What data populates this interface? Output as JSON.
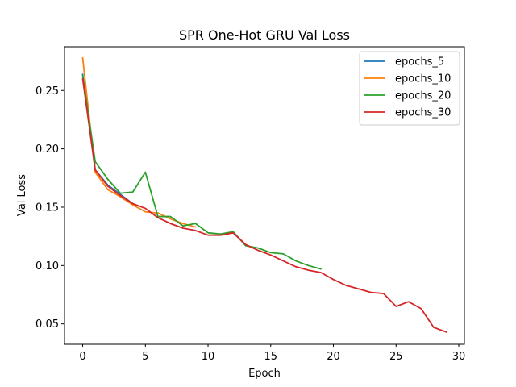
{
  "chart_data": {
    "type": "line",
    "title": "SPR One-Hot GRU Val Loss",
    "xlabel": "Epoch",
    "ylabel": "Val Loss",
    "xlim": [
      -1.45,
      30.45
    ],
    "ylim": [
      0.0325,
      0.2875
    ],
    "xticks": [
      0,
      5,
      10,
      15,
      20,
      25,
      30
    ],
    "yticks": [
      0.05,
      0.1,
      0.15,
      0.2,
      0.25
    ],
    "ytick_labels": [
      "0.05",
      "0.10",
      "0.15",
      "0.20",
      "0.25"
    ],
    "grid": false,
    "legend_position": "top-right",
    "series": [
      {
        "name": "epochs_5",
        "color": "#1f77b4",
        "x": [
          0,
          1,
          2,
          3,
          4
        ],
        "y": [
          0.264,
          0.182,
          0.169,
          0.161,
          0.153
        ]
      },
      {
        "name": "epochs_10",
        "color": "#ff7f0e",
        "x": [
          0,
          1,
          2,
          3,
          4,
          5,
          6,
          7,
          8,
          9
        ],
        "y": [
          0.278,
          0.18,
          0.165,
          0.159,
          0.152,
          0.146,
          0.145,
          0.14,
          0.136,
          0.133
        ]
      },
      {
        "name": "epochs_20",
        "color": "#2ca02c",
        "x": [
          0,
          1,
          2,
          3,
          4,
          5,
          6,
          7,
          8,
          9,
          10,
          11,
          12,
          13,
          14,
          15,
          16,
          17,
          18,
          19
        ],
        "y": [
          0.263,
          0.189,
          0.174,
          0.162,
          0.163,
          0.18,
          0.142,
          0.142,
          0.134,
          0.136,
          0.128,
          0.127,
          0.129,
          0.117,
          0.115,
          0.111,
          0.11,
          0.104,
          0.1,
          0.097
        ]
      },
      {
        "name": "epochs_30",
        "color": "#d62728",
        "x": [
          0,
          1,
          2,
          3,
          4,
          5,
          6,
          7,
          8,
          9,
          10,
          11,
          12,
          13,
          14,
          15,
          16,
          17,
          18,
          19,
          20,
          21,
          22,
          23,
          24,
          25,
          26,
          27,
          28,
          29
        ],
        "y": [
          0.26,
          0.182,
          0.168,
          0.16,
          0.153,
          0.149,
          0.141,
          0.136,
          0.132,
          0.13,
          0.126,
          0.126,
          0.128,
          0.118,
          0.113,
          0.109,
          0.104,
          0.099,
          0.096,
          0.094,
          0.088,
          0.083,
          0.08,
          0.077,
          0.076,
          0.065,
          0.069,
          0.063,
          0.047,
          0.043
        ]
      }
    ]
  }
}
